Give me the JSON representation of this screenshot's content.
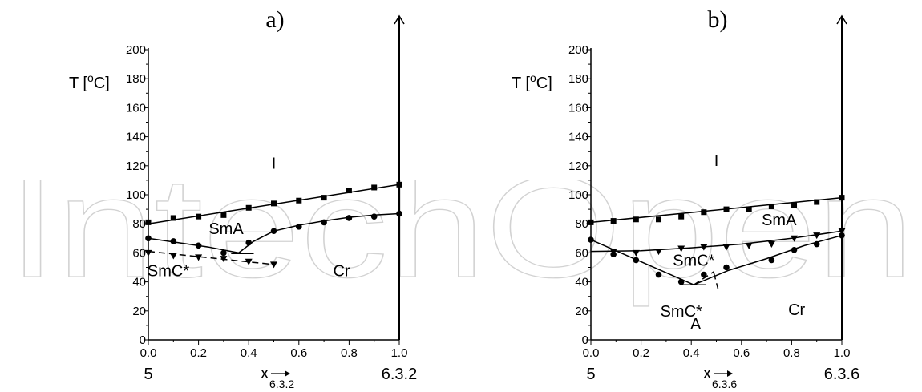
{
  "watermark": {
    "text": "IntechOpen"
  },
  "chart_data": [
    {
      "type": "scatter",
      "panel_label": "a)",
      "ylabel": "T [°C]",
      "xlabel": "x",
      "xlabel_sub": "6.3.2",
      "left_component": "5",
      "right_component": "6.3.2",
      "xlim": [
        0,
        1
      ],
      "ylim": [
        0,
        200
      ],
      "x_ticks": [
        "0.0",
        "0.2",
        "0.4",
        "0.6",
        "0.8",
        "1.0"
      ],
      "y_ticks": [
        "0",
        "20",
        "40",
        "60",
        "80",
        "100",
        "120",
        "140",
        "160",
        "180",
        "200"
      ],
      "regions": [
        {
          "label": "I",
          "x": 0.5,
          "y": 118
        },
        {
          "label": "SmA",
          "x": 0.31,
          "y": 73
        },
        {
          "label": "SmC*",
          "x": 0.08,
          "y": 44
        },
        {
          "label": "Cr",
          "x": 0.77,
          "y": 44
        }
      ],
      "series": [
        {
          "marker": "square",
          "points": [
            [
              0.0,
              81
            ],
            [
              0.1,
              84
            ],
            [
              0.2,
              85
            ],
            [
              0.3,
              86
            ],
            [
              0.4,
              91
            ],
            [
              0.5,
              94
            ],
            [
              0.6,
              96
            ],
            [
              0.7,
              98
            ],
            [
              0.8,
              103
            ],
            [
              0.9,
              105
            ],
            [
              1.0,
              107
            ]
          ],
          "line": [
            [
              0.0,
              80
            ],
            [
              1.0,
              107
            ]
          ],
          "dash": false
        },
        {
          "marker": "circle",
          "points": [
            [
              0.0,
              70
            ],
            [
              0.1,
              68
            ],
            [
              0.2,
              65
            ],
            [
              0.3,
              60
            ],
            [
              0.4,
              67
            ],
            [
              0.5,
              75
            ],
            [
              0.6,
              78
            ],
            [
              0.7,
              81
            ],
            [
              0.8,
              84
            ],
            [
              0.9,
              85
            ],
            [
              1.0,
              87
            ]
          ],
          "line": [
            [
              0.0,
              70
            ],
            [
              0.12,
              67
            ],
            [
              0.24,
              64
            ],
            [
              0.33,
              61
            ],
            [
              0.36,
              60
            ],
            [
              0.42,
              68
            ],
            [
              0.5,
              75
            ],
            [
              0.6,
              79
            ],
            [
              0.7,
              82
            ],
            [
              0.8,
              84.5
            ],
            [
              0.9,
              86
            ],
            [
              1.0,
              87
            ]
          ],
          "dash": false
        },
        {
          "marker": "none",
          "points": [],
          "line": [
            [
              0.33,
              59.5
            ],
            [
              0.42,
              59.5
            ]
          ],
          "dash": false
        },
        {
          "marker": "triangle-down",
          "points": [
            [
              0.0,
              60
            ],
            [
              0.1,
              58
            ],
            [
              0.2,
              57
            ],
            [
              0.3,
              56
            ],
            [
              0.4,
              54
            ],
            [
              0.5,
              52
            ]
          ],
          "line": [
            [
              0.0,
              61
            ],
            [
              0.5,
              52
            ]
          ],
          "dash": true
        }
      ]
    },
    {
      "type": "scatter",
      "panel_label": "b)",
      "ylabel": "T [°C]",
      "xlabel": "x",
      "xlabel_sub": "6.3.6",
      "left_component": "5",
      "right_component": "6.3.6",
      "xlim": [
        0,
        1
      ],
      "ylim": [
        0,
        200
      ],
      "x_ticks": [
        "0.0",
        "0.2",
        "0.4",
        "0.6",
        "0.8",
        "1.0"
      ],
      "y_ticks": [
        "0",
        "20",
        "40",
        "60",
        "80",
        "100",
        "120",
        "140",
        "160",
        "180",
        "200"
      ],
      "regions": [
        {
          "label": "I",
          "x": 0.5,
          "y": 120
        },
        {
          "label": "SmA",
          "x": 0.75,
          "y": 79
        },
        {
          "label": "SmC*",
          "x": 0.41,
          "y": 51
        },
        {
          "label": "SmC*",
          "x": 0.36,
          "y": 16,
          "subscript": "A"
        },
        {
          "label": "Cr",
          "x": 0.82,
          "y": 17
        }
      ],
      "series": [
        {
          "marker": "square",
          "points": [
            [
              0.0,
              81
            ],
            [
              0.09,
              82
            ],
            [
              0.18,
              83
            ],
            [
              0.27,
              83
            ],
            [
              0.36,
              85
            ],
            [
              0.45,
              88
            ],
            [
              0.54,
              90
            ],
            [
              0.63,
              90
            ],
            [
              0.72,
              92
            ],
            [
              0.81,
              93
            ],
            [
              0.9,
              95
            ],
            [
              1.0,
              98
            ]
          ],
          "line": [
            [
              0.0,
              81
            ],
            [
              1.0,
              98
            ]
          ],
          "dash": false
        },
        {
          "marker": "triangle-down",
          "points": [
            [
              0.09,
              61
            ],
            [
              0.18,
              60
            ],
            [
              0.27,
              61
            ],
            [
              0.36,
              63
            ],
            [
              0.45,
              64
            ],
            [
              0.54,
              64
            ],
            [
              0.63,
              65
            ],
            [
              0.72,
              66
            ],
            [
              0.81,
              70
            ],
            [
              0.9,
              72
            ],
            [
              1.0,
              75
            ]
          ],
          "line": [
            [
              0.0,
              61
            ],
            [
              0.2,
              61.5
            ],
            [
              0.4,
              63.5
            ],
            [
              0.6,
              66
            ],
            [
              0.8,
              70
            ],
            [
              1.0,
              75
            ]
          ],
          "dash": false
        },
        {
          "marker": "circle",
          "points": [
            [
              0.0,
              69
            ],
            [
              0.09,
              59
            ],
            [
              0.18,
              55
            ],
            [
              0.27,
              45
            ],
            [
              0.36,
              40
            ],
            [
              0.45,
              45
            ],
            [
              0.54,
              50
            ],
            [
              0.72,
              55
            ],
            [
              0.81,
              62
            ],
            [
              0.9,
              66
            ],
            [
              1.0,
              72
            ]
          ],
          "line": [
            [
              0.0,
              69
            ],
            [
              0.41,
              38
            ],
            [
              0.55,
              48
            ],
            [
              0.7,
              56
            ],
            [
              0.85,
              65
            ],
            [
              1.0,
              72
            ]
          ],
          "dash": false
        },
        {
          "marker": "none",
          "points": [],
          "line": [
            [
              0.36,
              38
            ],
            [
              0.46,
              38
            ]
          ],
          "dash": false
        },
        {
          "marker": "none",
          "points": [],
          "line": [
            [
              0.41,
              38
            ],
            [
              0.49,
              47
            ]
          ],
          "dash": true
        },
        {
          "marker": "none",
          "points": [],
          "line": [
            [
              0.49,
              46
            ],
            [
              0.51,
              33
            ]
          ],
          "dash": true
        }
      ]
    }
  ]
}
